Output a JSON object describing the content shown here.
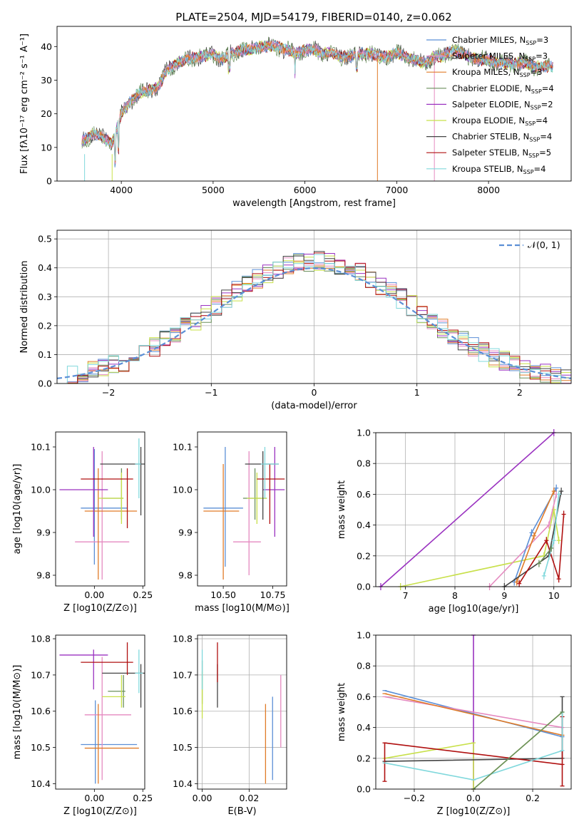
{
  "title": "PLATE=2504, MJD=54179, FIBERID=0140, z=0.062",
  "colors": {
    "chabrier_miles": "#5b8fd6",
    "salpeter_miles": "#e58ac0",
    "kroupa_miles": "#e07b28",
    "chabrier_elodie": "#6a8f5c",
    "salpeter_elodie": "#9a32c0",
    "kroupa_elodie": "#c8e04a",
    "chabrier_stelib": "#444444",
    "salpeter_stelib": "#b01010",
    "kroupa_stelib": "#80d8dc",
    "gauss": "#5b8fd6"
  },
  "chart_data": [
    {
      "type": "line",
      "id": "spectrum",
      "xlabel": "wavelength [Angstrom, rest frame]",
      "ylabel": "Flux [fλ10⁻¹⁷ erg cm⁻² s⁻¹ A⁻¹]",
      "xlim": [
        3300,
        8900
      ],
      "ylim": [
        0,
        46
      ],
      "xticks": [
        "4000",
        "5000",
        "6000",
        "7000",
        "8000"
      ],
      "yticks": [
        "0",
        "10",
        "20",
        "30",
        "40"
      ],
      "spectrum_shape": {
        "x": [
          3570,
          3700,
          3800,
          3900,
          4000,
          4100,
          4200,
          4300,
          4400,
          4500,
          4600,
          4700,
          4800,
          4900,
          5000,
          5100,
          5200,
          5300,
          5400,
          5500,
          5600,
          5700,
          5800,
          5900,
          6000,
          6100,
          6200,
          6300,
          6400,
          6500,
          6600,
          6700,
          6800,
          6900,
          7000,
          7100,
          7200,
          7300,
          7400,
          7500,
          7600,
          7700,
          7800,
          7900,
          8000,
          8100,
          8200,
          8300,
          8400,
          8500,
          8600,
          8700
        ],
        "y": [
          12,
          14,
          13,
          11,
          20,
          24,
          26,
          27,
          28,
          33,
          35,
          36,
          37,
          37,
          38,
          36,
          38,
          39,
          39,
          40,
          40,
          40,
          39,
          38,
          39,
          39,
          38,
          38,
          37,
          37,
          38,
          38,
          37,
          37,
          38,
          37,
          36,
          35,
          37,
          37,
          39,
          38,
          37,
          36,
          36,
          35,
          35,
          35,
          35,
          34,
          34,
          34
        ]
      },
      "legend": [
        "Chabrier MILES, N_SSP=3",
        "Salpeter MILES, N_SSP=3",
        "Kroupa MILES, N_SSP=3",
        "Chabrier ELODIE, N_SSP=4",
        "Salpeter ELODIE, N_SSP=2",
        "Kroupa ELODIE, N_SSP=4",
        "Chabrier STELIB, N_SSP=4",
        "Salpeter STELIB, N_SSP=5",
        "Kroupa STELIB, N_SSP=4"
      ],
      "legend_position": "upper-right"
    },
    {
      "type": "line",
      "id": "residuals",
      "xlabel": "(data-model)/error",
      "ylabel": "Normed distribution",
      "xlim": [
        -2.5,
        2.5
      ],
      "ylim": [
        0,
        0.53
      ],
      "xticks": [
        "−2",
        "−1",
        "0",
        "1",
        "2"
      ],
      "yticks": [
        "0.0",
        "0.1",
        "0.2",
        "0.3",
        "0.4",
        "0.5"
      ],
      "legend": [
        "𝒩(0, 1)"
      ],
      "legend_position": "upper-right",
      "grid": true
    },
    {
      "type": "scatter",
      "id": "age_vs_Z",
      "xlabel": "Z [log10(Z/Z⊙)]",
      "ylabel": "age  [log10(age/yr)]",
      "xlim": [
        -0.2,
        0.26
      ],
      "ylim": [
        9.775,
        10.135
      ],
      "xticks": [
        "0.00",
        "0.25"
      ],
      "yticks": [
        "9.8",
        "9.9",
        "10.0",
        "10.1"
      ],
      "points": [
        {
          "color": "chabrier_miles",
          "x": [
            -0.07,
            0.17
          ],
          "y": [
            9.825,
            10.095
          ],
          "cx": 0.0,
          "cy": 9.957
        },
        {
          "color": "salpeter_miles",
          "x": [
            -0.1,
            0.18
          ],
          "y": [
            9.79,
            10.09
          ],
          "cx": 0.04,
          "cy": 9.878
        },
        {
          "color": "kroupa_miles",
          "x": [
            -0.05,
            0.22
          ],
          "y": [
            9.79,
            10.05
          ],
          "cx": 0.02,
          "cy": 9.95
        },
        {
          "color": "chabrier_elodie",
          "x": [
            0.04,
            0.15
          ],
          "y": [
            9.93,
            10.05
          ],
          "cx": 0.14,
          "cy": 9.98
        },
        {
          "color": "salpeter_elodie",
          "x": [
            -0.18,
            0.07
          ],
          "y": [
            9.89,
            10.1
          ],
          "cx": -0.004,
          "cy": 10.0
        },
        {
          "color": "kroupa_elodie",
          "x": [
            0.02,
            0.15
          ],
          "y": [
            9.92,
            10.04
          ],
          "cx": 0.14,
          "cy": 9.98
        },
        {
          "color": "chabrier_stelib",
          "x": [
            0.03,
            0.26
          ],
          "y": [
            9.94,
            10.1
          ],
          "cx": 0.24,
          "cy": 10.06
        },
        {
          "color": "salpeter_stelib",
          "x": [
            -0.07,
            0.2
          ],
          "y": [
            9.91,
            10.05
          ],
          "cx": 0.17,
          "cy": 10.025
        },
        {
          "color": "kroupa_stelib",
          "x": [
            0.21,
            0.24
          ],
          "y": [
            9.98,
            10.12
          ],
          "cx": 0.23,
          "cy": 10.06
        }
      ]
    },
    {
      "type": "scatter",
      "id": "age_vs_mass",
      "xlabel": "mass [log10(M/M⊙)]",
      "xlim": [
        10.37,
        10.82
      ],
      "ylim": [
        9.775,
        10.135
      ],
      "xticks": [
        "10.50",
        "10.75"
      ],
      "yticks": [
        "9.8",
        "9.9",
        "10.0",
        "10.1"
      ]
    },
    {
      "type": "line",
      "id": "weight_vs_age",
      "xlabel": "age  [log10(age/yr)]",
      "ylabel": "mass weight",
      "xlim": [
        6.4,
        10.35
      ],
      "ylim": [
        0,
        1.0
      ],
      "xticks": [
        "7",
        "8",
        "9",
        "10"
      ],
      "yticks": [
        "0.0",
        "0.2",
        "0.4",
        "0.6",
        "0.8",
        "1.0"
      ],
      "grid": true
    },
    {
      "type": "scatter",
      "id": "mass_vs_Z",
      "xlabel": "Z [log10(Z/Z⊙)]",
      "ylabel": "mass [log10(M/M⊙)]",
      "xlim": [
        -0.2,
        0.26
      ],
      "ylim": [
        10.385,
        10.81
      ],
      "xticks": [
        "0.00",
        "0.25"
      ],
      "yticks": [
        "10.4",
        "10.5",
        "10.6",
        "10.7",
        "10.8"
      ]
    },
    {
      "type": "scatter",
      "id": "mass_vs_ebv",
      "xlabel": "E(B-V)",
      "xlim": [
        -0.002,
        0.036
      ],
      "ylim": [
        10.385,
        10.81
      ],
      "xticks": [
        "0.00",
        "0.02"
      ],
      "yticks": [
        "10.4",
        "10.5",
        "10.6",
        "10.7",
        "10.8"
      ],
      "grid": true
    },
    {
      "type": "line",
      "id": "weight_vs_Z",
      "xlabel": "Z [log10(Z/Z⊙)]",
      "ylabel": "mass weight",
      "xlim": [
        -0.33,
        0.33
      ],
      "ylim": [
        0,
        1.0
      ],
      "xticks": [
        "−0.2",
        "0.0",
        "0.2"
      ],
      "yticks": [
        "0.0",
        "0.2",
        "0.4",
        "0.6",
        "0.8",
        "1.0"
      ],
      "grid": true
    }
  ]
}
